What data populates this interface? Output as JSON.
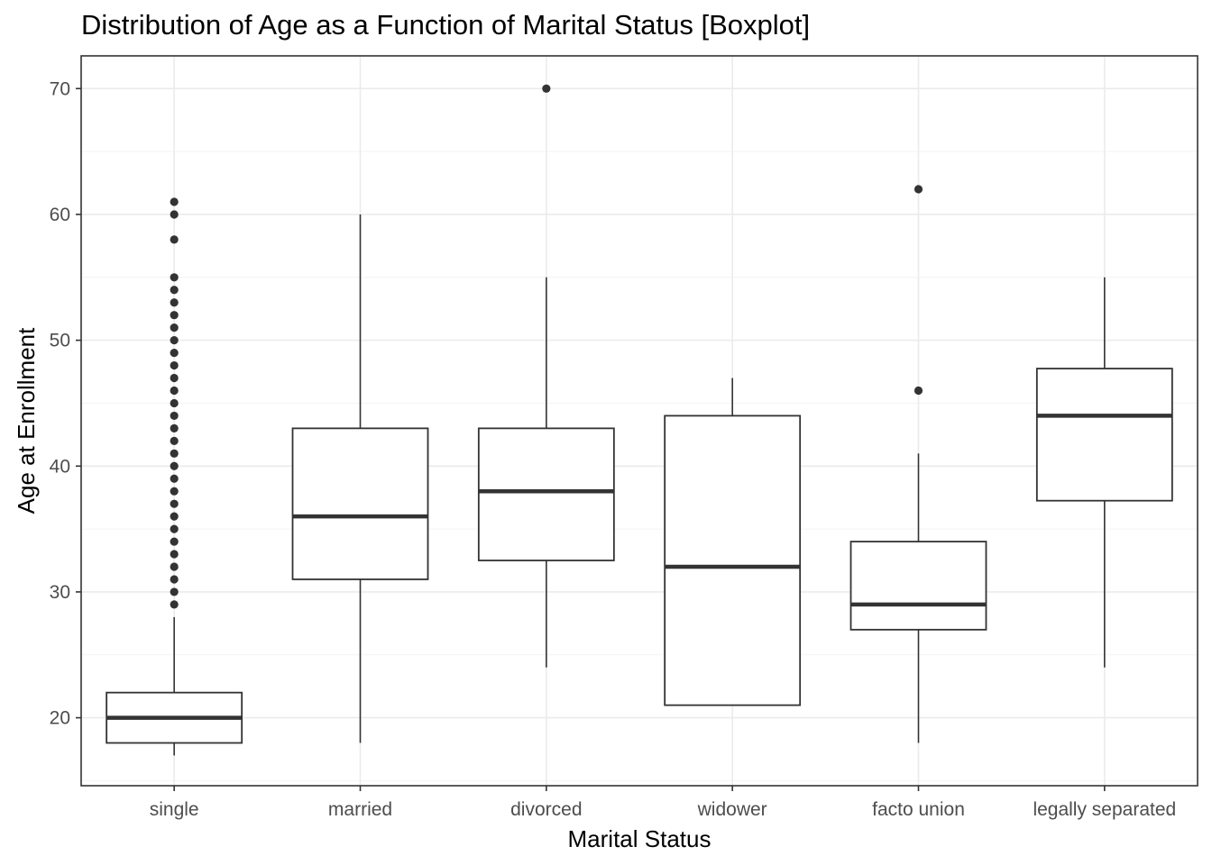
{
  "chart_data": {
    "type": "boxplot",
    "title": "Distribution of Age as a Function of Marital Status [Boxplot]",
    "xlabel": "Marital Status",
    "ylabel": "Age at Enrollment",
    "ylim": [
      14.6,
      72.6
    ],
    "yticks": [
      20,
      30,
      40,
      50,
      60,
      70
    ],
    "grid": true,
    "categories": [
      "single",
      "married",
      "divorced",
      "widower",
      "facto union",
      "legally separated"
    ],
    "boxes": [
      {
        "category": "single",
        "min": 17,
        "q1": 18,
        "median": 20,
        "q3": 22,
        "max": 28,
        "outliers": [
          29,
          30,
          31,
          32,
          33,
          34,
          35,
          36,
          37,
          38,
          39,
          40,
          41,
          42,
          43,
          44,
          45,
          46,
          47,
          48,
          49,
          50,
          51,
          52,
          53,
          54,
          55,
          58,
          60,
          61
        ]
      },
      {
        "category": "married",
        "min": 18,
        "q1": 31,
        "median": 36,
        "q3": 43,
        "max": 60,
        "outliers": []
      },
      {
        "category": "divorced",
        "min": 24,
        "q1": 32.5,
        "median": 38,
        "q3": 43,
        "max": 55,
        "outliers": [
          70
        ]
      },
      {
        "category": "widower",
        "min": 21,
        "q1": 21,
        "median": 32,
        "q3": 44,
        "max": 47,
        "outliers": []
      },
      {
        "category": "facto union",
        "min": 18,
        "q1": 27,
        "median": 29,
        "q3": 34,
        "max": 41,
        "outliers": [
          46,
          62
        ]
      },
      {
        "category": "legally separated",
        "min": 24,
        "q1": 37.25,
        "median": 44,
        "q3": 47.75,
        "max": 55,
        "outliers": []
      }
    ],
    "colors": {
      "box_stroke": "#333333",
      "box_fill": "#ffffff",
      "grid_major": "#ebebeb",
      "grid_minor": "#f4f4f4",
      "panel_border": "#333333"
    }
  }
}
